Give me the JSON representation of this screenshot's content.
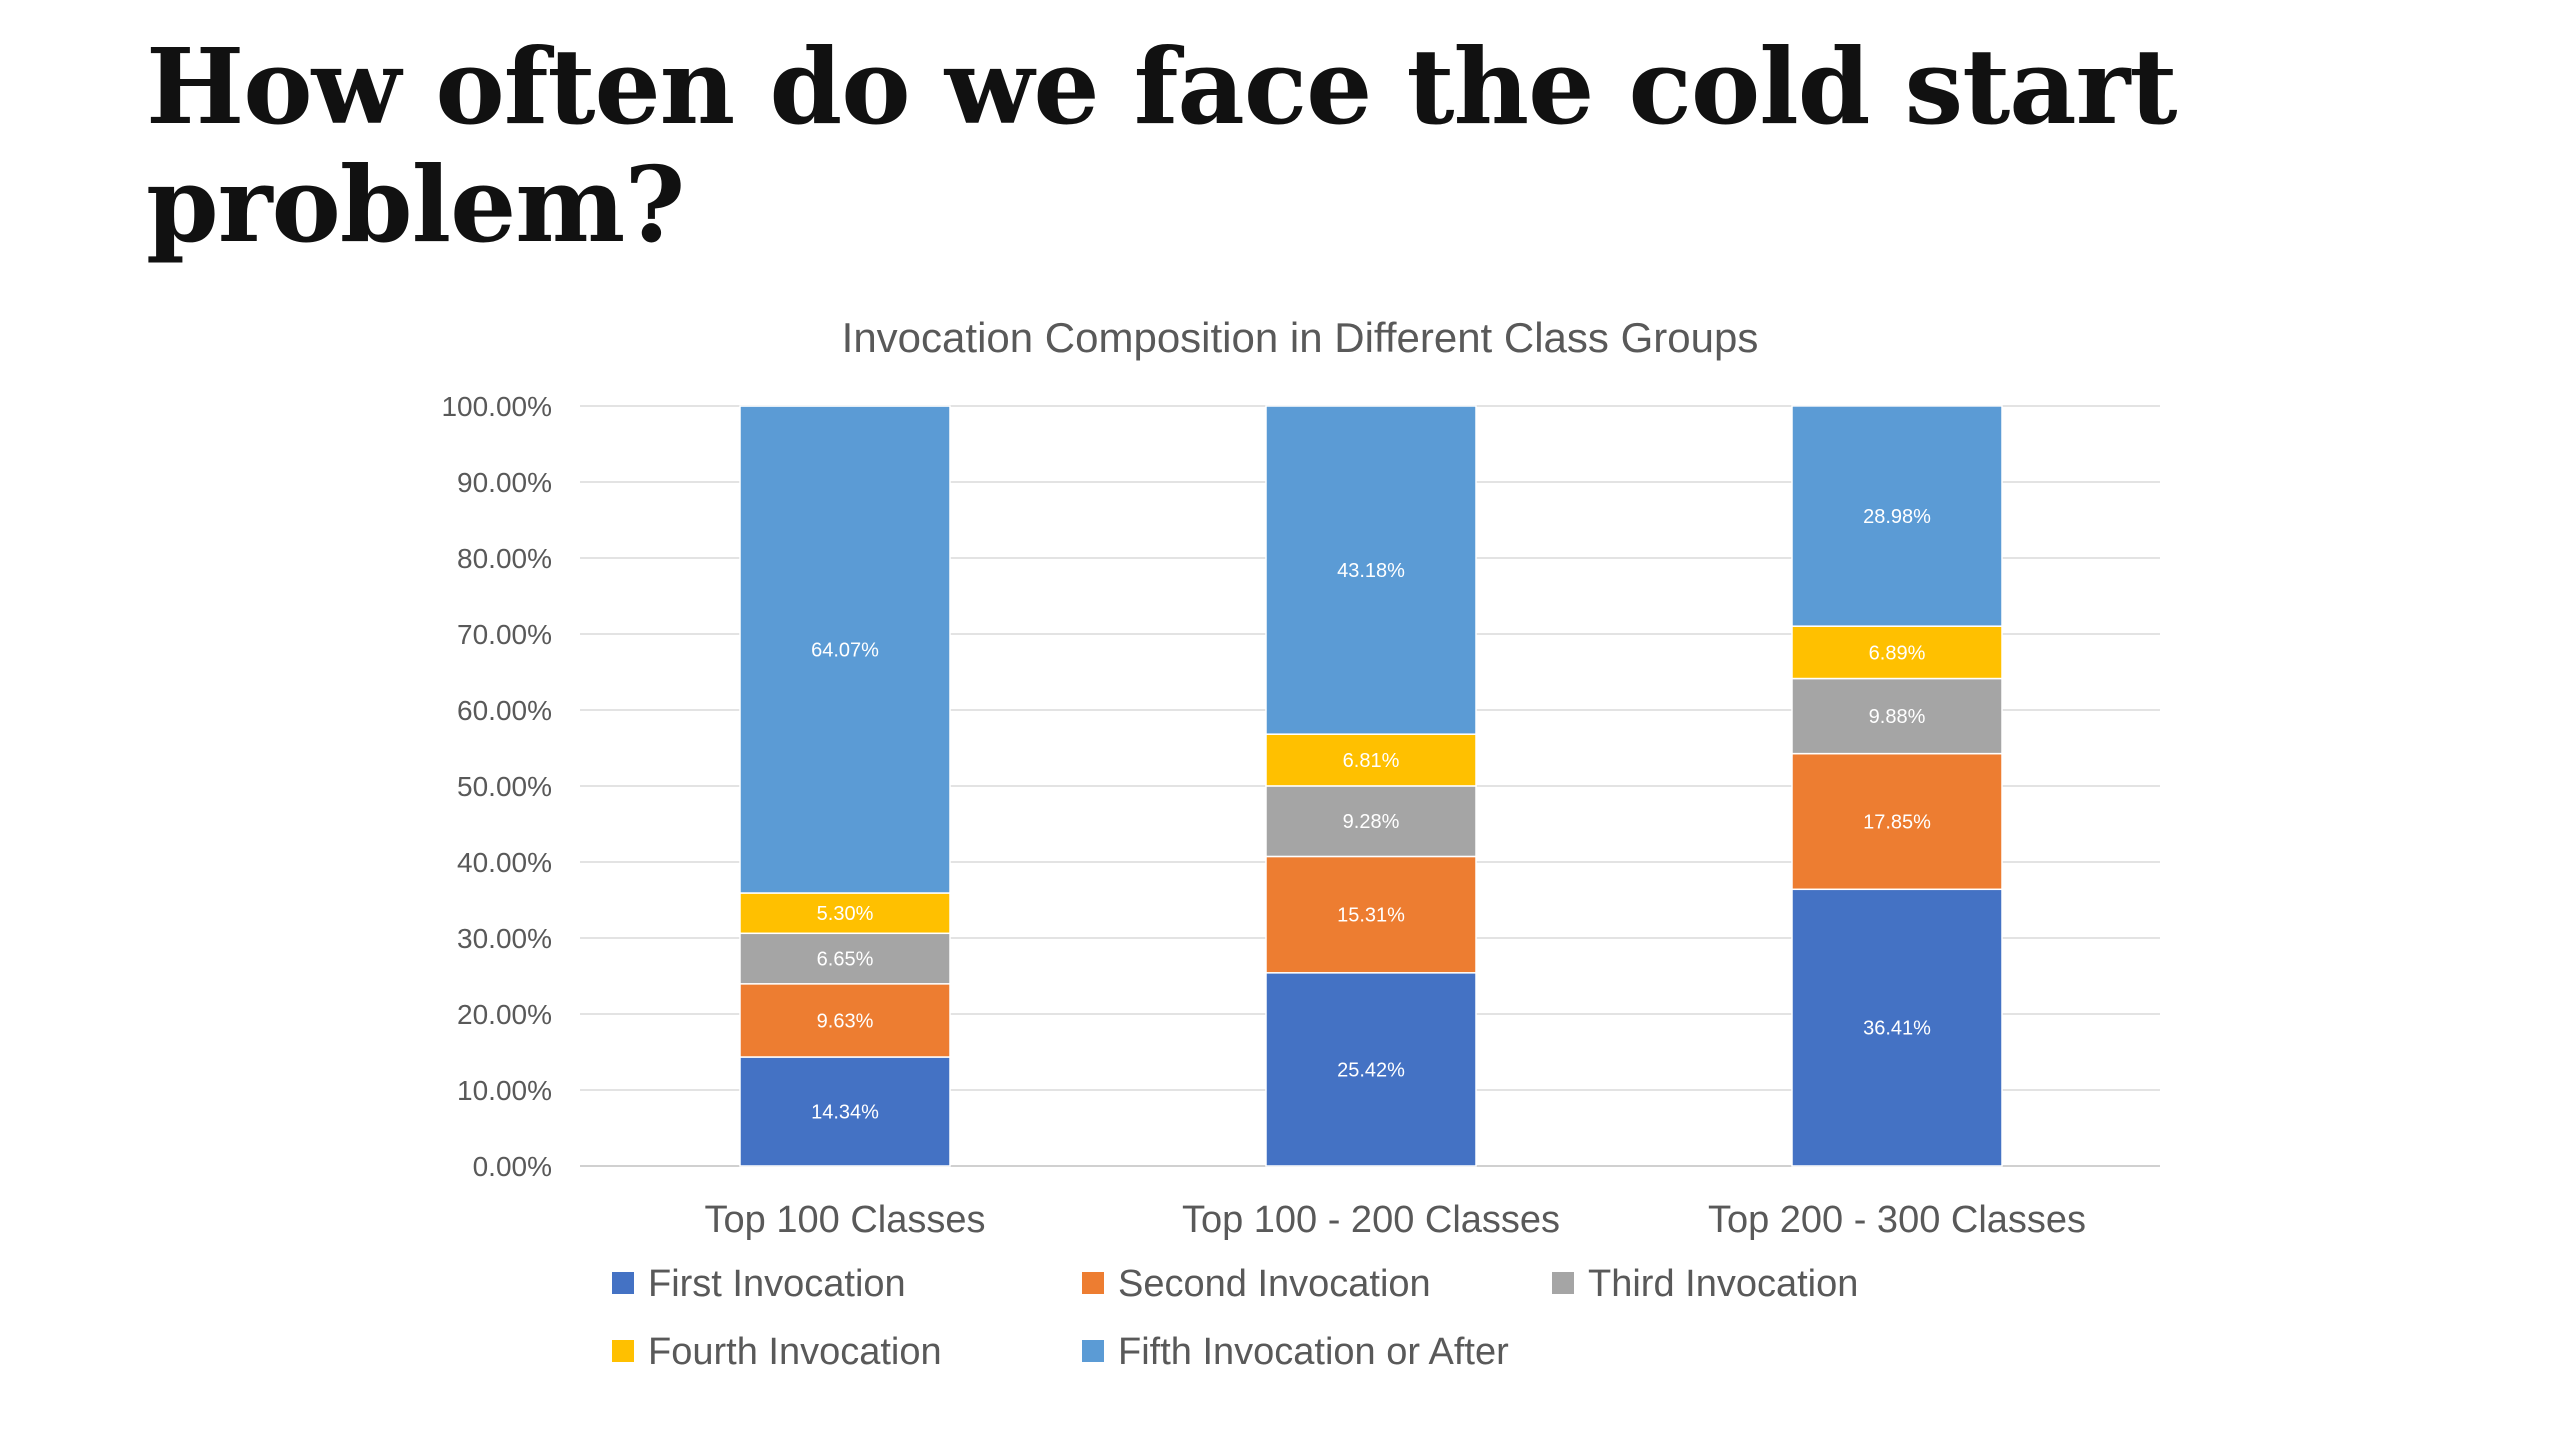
{
  "slide": {
    "title": "How often do we face the cold start problem?"
  },
  "chart_data": {
    "type": "bar",
    "stacked": true,
    "title": "Invocation Composition in Different Class Groups",
    "xlabel": "",
    "ylabel": "",
    "ylim": [
      0,
      100
    ],
    "y_tick_step": 10,
    "y_tick_format": "percent_2dp",
    "y_ticks": [
      "0.00%",
      "10.00%",
      "20.00%",
      "30.00%",
      "40.00%",
      "50.00%",
      "60.00%",
      "70.00%",
      "80.00%",
      "90.00%",
      "100.00%"
    ],
    "grid": true,
    "legend_position": "bottom",
    "categories": [
      "Top 100 Classes",
      "Top 100 - 200 Classes",
      "Top 200 - 300 Classes"
    ],
    "series": [
      {
        "name": "First Invocation",
        "color": "#4472C4",
        "values": [
          14.34,
          25.42,
          36.41
        ],
        "labels": [
          "14.34%",
          "25.42%",
          "36.41%"
        ]
      },
      {
        "name": "Second Invocation",
        "color": "#ED7D31",
        "values": [
          9.63,
          15.31,
          17.85
        ],
        "labels": [
          "9.63%",
          "15.31%",
          "17.85%"
        ]
      },
      {
        "name": "Third Invocation",
        "color": "#A5A5A5",
        "values": [
          6.65,
          9.28,
          9.88
        ],
        "labels": [
          "6.65%",
          "9.28%",
          "9.88%"
        ]
      },
      {
        "name": "Fourth Invocation",
        "color": "#FFC000",
        "values": [
          5.3,
          6.81,
          6.89
        ],
        "labels": [
          "5.30%",
          "6.81%",
          "6.89%"
        ]
      },
      {
        "name": "Fifth Invocation or After",
        "color": "#5B9BD5",
        "values": [
          64.07,
          43.18,
          28.98
        ],
        "labels": [
          "64.07%",
          "43.18%",
          "28.98%"
        ]
      }
    ]
  }
}
